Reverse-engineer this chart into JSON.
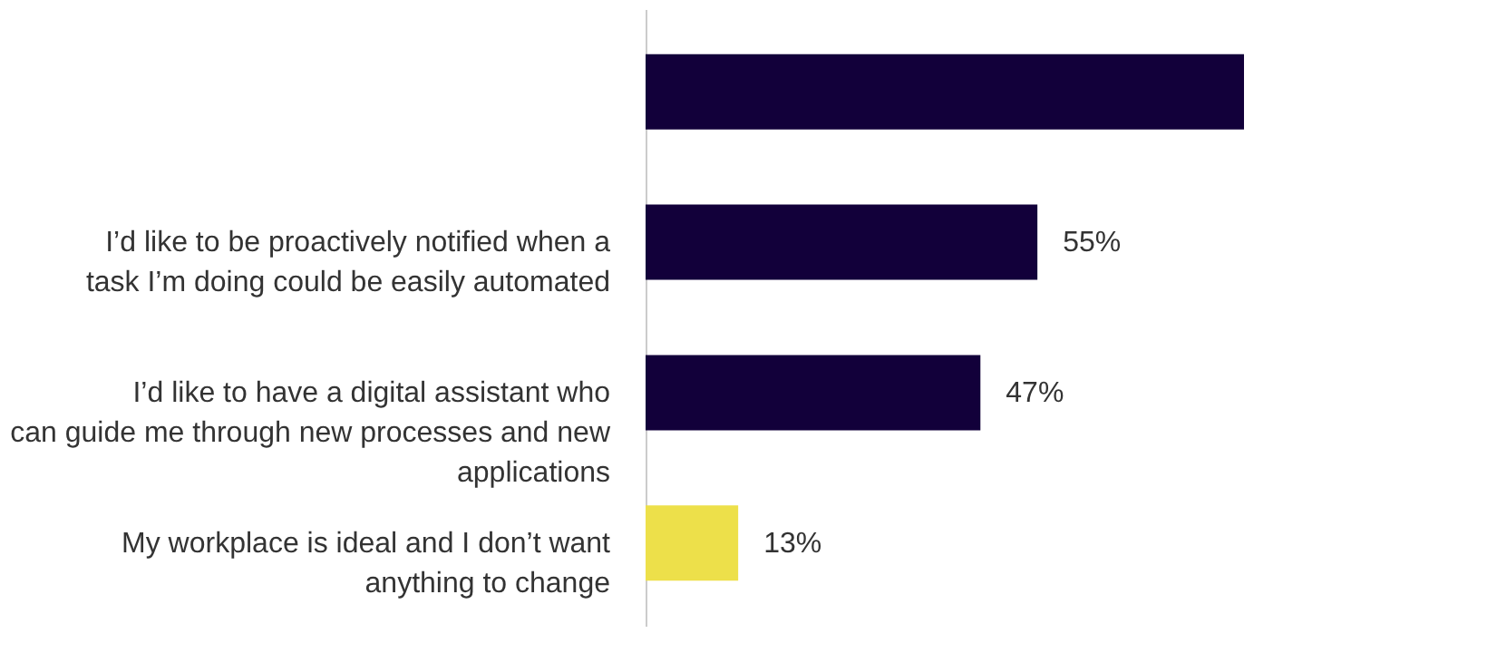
{
  "chart_data": {
    "type": "bar",
    "orientation": "horizontal",
    "categories": [
      null,
      "I’d like to be proactively notified when a task I’m doing could be easily automated",
      "I’d like to have a digital assistant who can guide me through new processes and new applications",
      "My workplace is ideal and I don’t want anything to change"
    ],
    "values": [
      84,
      55,
      47,
      13
    ],
    "colors": [
      "#12003a",
      "#12003a",
      "#12003a",
      "#ede04a"
    ],
    "value_labels": [
      null,
      "55%",
      "47%",
      "13%"
    ],
    "grid": false,
    "legend": false
  }
}
